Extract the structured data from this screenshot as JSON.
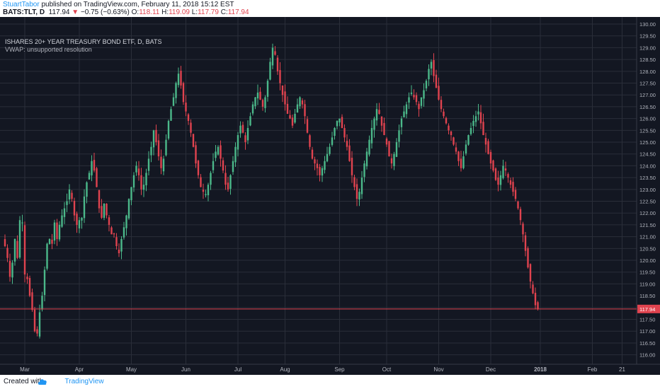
{
  "header": {
    "author": "StuartTabor",
    "published_text": " published on TradingView.com, February 11, 2018 15:12 EST",
    "symbol": "BATS:TLT, D",
    "last": "117.94",
    "change_arrow": "▼",
    "change": "−0.75 (−0.63%)",
    "o_label": "O:",
    "o_value": "118.11",
    "h_label": "H:",
    "h_value": "119.09",
    "l_label": "L:",
    "l_value": "117.79",
    "c_label": "C:",
    "c_value": "117.94"
  },
  "legend": {
    "title": "ISHARES 20+ YEAR TREASURY BOND ETF, D, BATS",
    "indicator": "VWAP: unsupported resolution"
  },
  "footer": {
    "created_with": "Created with",
    "brand": "TradingView"
  },
  "colors": {
    "background": "#131722",
    "grid": "#2a2e39",
    "up": "#4bb88a",
    "down": "#e0434f",
    "price_line": "#e0434f",
    "axis_text": "#b2b5be"
  },
  "chart_data": {
    "type": "candlestick",
    "symbol": "BATS:TLT",
    "interval": "D",
    "ylim": [
      115.6,
      130.3
    ],
    "y_ticks": [
      "116.00",
      "116.50",
      "117.00",
      "117.50",
      "118.00",
      "118.50",
      "119.00",
      "119.50",
      "120.00",
      "120.50",
      "121.00",
      "121.50",
      "122.00",
      "122.50",
      "123.00",
      "123.50",
      "124.00",
      "124.50",
      "125.00",
      "125.50",
      "126.00",
      "126.50",
      "127.00",
      "127.50",
      "128.00",
      "128.50",
      "129.00",
      "129.50",
      "130.00"
    ],
    "x_labels": [
      {
        "label": "Mar",
        "bar": 8
      },
      {
        "label": "Apr",
        "bar": 30
      },
      {
        "label": "May",
        "bar": 51
      },
      {
        "label": "Jun",
        "bar": 73
      },
      {
        "label": "Jul",
        "bar": 94
      },
      {
        "label": "Aug",
        "bar": 113
      },
      {
        "label": "Sep",
        "bar": 135
      },
      {
        "label": "Oct",
        "bar": 154
      },
      {
        "label": "Nov",
        "bar": 175
      },
      {
        "label": "Dec",
        "bar": 196
      },
      {
        "label": "2018",
        "bar": 216
      },
      {
        "label": "Feb",
        "bar": 237
      },
      {
        "label": "21",
        "bar": 249
      }
    ],
    "last_price": 117.94,
    "last_price_label": "117.94",
    "closes": [
      120.6,
      120.1,
      119.3,
      119.9,
      120.9,
      120.1,
      121.7,
      121.6,
      119.4,
      119.2,
      118.5,
      117.9,
      117.0,
      116.9,
      117.8,
      118.5,
      119.6,
      120.7,
      120.9,
      120.7,
      121.6,
      120.9,
      121.5,
      121.9,
      122.2,
      122.5,
      123.0,
      122.6,
      121.9,
      121.5,
      121.7,
      121.8,
      122.7,
      123.3,
      123.7,
      124.2,
      123.8,
      123.1,
      122.2,
      121.8,
      122.4,
      121.9,
      121.5,
      121.1,
      121.1,
      120.6,
      120.3,
      120.9,
      121.4,
      121.9,
      122.6,
      123.1,
      123.6,
      124.0,
      123.6,
      123.0,
      123.2,
      123.7,
      124.3,
      124.8,
      125.5,
      125.0,
      124.4,
      123.9,
      124.3,
      125.1,
      125.9,
      126.4,
      126.9,
      127.5,
      127.9,
      127.4,
      126.7,
      126.3,
      125.9,
      125.4,
      124.8,
      124.1,
      123.6,
      123.1,
      122.9,
      122.8,
      123.2,
      123.7,
      124.2,
      124.6,
      124.8,
      124.3,
      123.8,
      123.2,
      123.0,
      123.6,
      124.2,
      124.8,
      125.3,
      125.7,
      125.4,
      125.0,
      125.6,
      126.1,
      126.6,
      126.9,
      127.1,
      126.8,
      126.5,
      126.9,
      127.6,
      128.4,
      129.0,
      128.7,
      128.0,
      127.5,
      127.0,
      126.6,
      126.2,
      126.0,
      125.7,
      126.2,
      126.6,
      126.9,
      126.6,
      126.1,
      125.4,
      124.8,
      124.3,
      124.1,
      123.9,
      123.6,
      123.9,
      124.2,
      124.5,
      124.8,
      125.2,
      125.6,
      125.9,
      126.0,
      125.6,
      125.2,
      124.8,
      124.2,
      123.6,
      123.1,
      122.6,
      122.9,
      123.5,
      124.1,
      124.6,
      125.1,
      125.6,
      126.0,
      126.4,
      126.2,
      125.7,
      125.3,
      124.9,
      124.4,
      124.1,
      124.5,
      125.0,
      125.5,
      126.0,
      126.3,
      126.6,
      126.9,
      127.1,
      126.9,
      126.7,
      126.4,
      126.9,
      127.2,
      127.6,
      128.1,
      128.4,
      127.8,
      127.3,
      126.8,
      126.4,
      126.1,
      125.8,
      125.5,
      125.3,
      124.9,
      124.6,
      124.2,
      123.9,
      124.4,
      124.9,
      125.3,
      125.6,
      125.9,
      126.1,
      126.3,
      125.8,
      125.3,
      124.9,
      124.5,
      124.1,
      123.8,
      123.4,
      123.2,
      123.6,
      124.0,
      123.8,
      123.5,
      123.2,
      122.9,
      122.6,
      122.2,
      121.7,
      121.1,
      120.4,
      119.7,
      119.1,
      118.6,
      118.1,
      117.94
    ]
  }
}
